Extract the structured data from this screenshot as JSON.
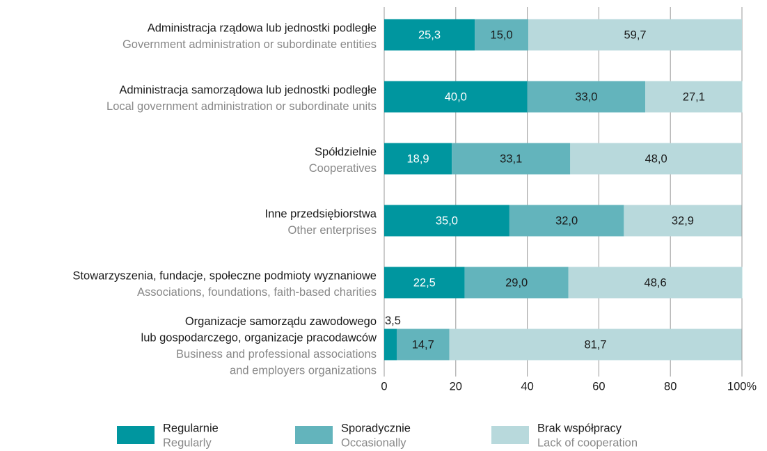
{
  "chart_data": {
    "type": "stacked-bar-horizontal",
    "categories": [
      {
        "label": [
          "Administracja rządowa lub jednostki podległe"
        ],
        "sublabel": [
          "Government administration or subordinate entities"
        ]
      },
      {
        "label": [
          "Administracja samorządowa lub jednostki podległe"
        ],
        "sublabel": [
          "Local government administration or subordinate units"
        ]
      },
      {
        "label": [
          "Spółdzielnie"
        ],
        "sublabel": [
          "Cooperatives"
        ]
      },
      {
        "label": [
          "Inne przedsiębiorstwa"
        ],
        "sublabel": [
          "Other enterprises"
        ]
      },
      {
        "label": [
          "Stowarzyszenia, fundacje, społeczne podmioty wyznaniowe"
        ],
        "sublabel": [
          "Associations, foundations, faith-based charities"
        ]
      },
      {
        "label": [
          "Organizacje samorządu zawodowego",
          "lub gospodarczego, organizacje pracodawców"
        ],
        "sublabel": [
          "Business and professional associations",
          "and employers organizations"
        ]
      }
    ],
    "series": [
      {
        "name": "Regularnie",
        "name_en": "Regularly",
        "color": "#00969f",
        "label_color": "#ffffff",
        "values": [
          25.3,
          40.0,
          18.9,
          35.0,
          22.5,
          3.5
        ],
        "value_labels": [
          "25,3",
          "40,0",
          "18,9",
          "35,0",
          "22,5",
          "3,5"
        ]
      },
      {
        "name": "Sporadycznie",
        "name_en": "Occasionally",
        "color": "#63b4bc",
        "label_color": "#1a1a1a",
        "values": [
          15.0,
          33.0,
          33.1,
          32.0,
          29.0,
          14.7
        ],
        "value_labels": [
          "15,0",
          "33,0",
          "33,1",
          "32,0",
          "29,0",
          "14,7"
        ]
      },
      {
        "name": "Brak współpracy",
        "name_en": "Lack of cooperation",
        "color": "#b8d9dc",
        "label_color": "#1a1a1a",
        "values": [
          59.7,
          27.1,
          48.0,
          32.9,
          48.6,
          81.7
        ],
        "value_labels": [
          "59,7",
          "27,1",
          "48,0",
          "32,9",
          "48,6",
          "81,7"
        ]
      }
    ],
    "xlim": [
      0,
      100
    ],
    "xticks": [
      0,
      20,
      40,
      60,
      80,
      {
        "value": 100,
        "label": "100%"
      }
    ],
    "grid": true
  }
}
